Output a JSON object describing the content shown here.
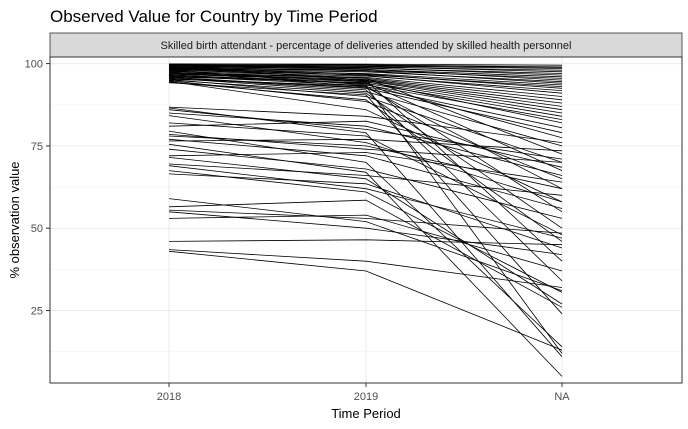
{
  "chart_data": {
    "type": "line",
    "title": "Observed Value for Country by Time Period",
    "facet_label": "Skilled birth attendant - percentage of deliveries attended by skilled health personnel",
    "xlabel": "Time Period",
    "ylabel": "% observation value",
    "categories": [
      "2018",
      "2019",
      "NA"
    ],
    "yticks": [
      25,
      50,
      75,
      100
    ],
    "ylim": [
      3,
      102
    ],
    "grid": true,
    "legend": "none",
    "line_color": "#000000",
    "series": [
      {
        "values": [
          99.9,
          99.8,
          99.5
        ]
      },
      {
        "values": [
          99.7,
          99.6,
          99.0
        ]
      },
      {
        "values": [
          99.5,
          99.4,
          98.8
        ]
      },
      {
        "values": [
          99.3,
          99.2,
          98.5
        ]
      },
      {
        "values": [
          99.1,
          98.9,
          98.0
        ]
      },
      {
        "values": [
          99.8,
          99.1,
          97.5
        ]
      },
      {
        "values": [
          98.9,
          98.6,
          97.0
        ]
      },
      {
        "values": [
          99.6,
          98.7,
          96.5
        ]
      },
      {
        "values": [
          98.7,
          98.2,
          96.0
        ]
      },
      {
        "values": [
          98.5,
          97.9,
          95.5
        ]
      },
      {
        "values": [
          99.4,
          98.3,
          95.0
        ]
      },
      {
        "values": [
          98.3,
          97.5,
          94.5
        ]
      },
      {
        "values": [
          99.0,
          97.8,
          94.0
        ]
      },
      {
        "values": [
          98.1,
          97.0,
          93.5
        ]
      },
      {
        "values": [
          97.9,
          96.6,
          93.0
        ]
      },
      {
        "values": [
          98.8,
          96.8,
          92.5
        ]
      },
      {
        "values": [
          97.6,
          96.2,
          91.8
        ]
      },
      {
        "values": [
          98.6,
          96.4,
          91.0
        ]
      },
      {
        "values": [
          97.3,
          95.8,
          90.0
        ]
      },
      {
        "values": [
          98.4,
          95.5,
          89.0
        ]
      },
      {
        "values": [
          97.0,
          95.2,
          88.0
        ]
      },
      {
        "values": [
          99.2,
          95.0,
          87.0
        ]
      },
      {
        "values": [
          96.8,
          94.8,
          86.0
        ]
      },
      {
        "values": [
          97.8,
          94.4,
          85.0
        ]
      },
      {
        "values": [
          96.5,
          94.0,
          84.0
        ]
      },
      {
        "values": [
          98.0,
          93.5,
          83.0
        ]
      },
      {
        "values": [
          96.2,
          94.6,
          82.0
        ]
      },
      {
        "values": [
          97.5,
          93.0,
          80.5
        ]
      },
      {
        "values": [
          95.9,
          92.5,
          79.0
        ]
      },
      {
        "values": [
          96.6,
          93.8,
          77.5
        ]
      },
      {
        "values": [
          95.6,
          91.5,
          75.0
        ]
      },
      {
        "values": [
          97.2,
          95.6,
          72.5
        ]
      },
      {
        "values": [
          95.2,
          90.0,
          70.0
        ]
      },
      {
        "values": [
          96.0,
          94.2,
          67.5
        ]
      },
      {
        "values": [
          94.8,
          88.5,
          65.0
        ]
      },
      {
        "values": [
          95.4,
          92.8,
          62.0
        ]
      },
      {
        "values": [
          94.6,
          86.0,
          58.0
        ]
      },
      {
        "values": [
          96.3,
          93.3,
          55.0
        ]
      },
      {
        "values": [
          95.0,
          91.0,
          50.0
        ]
      },
      {
        "values": [
          94.4,
          89.0,
          46.0
        ]
      },
      {
        "values": [
          96.9,
          94.9,
          40.0
        ]
      },
      {
        "values": [
          95.8,
          92.0,
          34.0
        ]
      },
      {
        "values": [
          94.2,
          90.5,
          24.0
        ]
      },
      {
        "values": [
          95.3,
          93.2,
          12.0
        ]
      },
      {
        "values": [
          86.8,
          84.0,
          76.0
        ]
      },
      {
        "values": [
          86.0,
          80.0,
          71.0
        ]
      },
      {
        "values": [
          85.0,
          81.0,
          66.0
        ]
      },
      {
        "values": [
          84.2,
          76.0,
          58.0
        ]
      },
      {
        "values": [
          82.0,
          78.0,
          48.0
        ]
      },
      {
        "values": [
          78.5,
          74.0,
          70.0
        ]
      },
      {
        "values": [
          78.0,
          75.0,
          62.0
        ]
      },
      {
        "values": [
          77.0,
          72.0,
          56.0
        ]
      },
      {
        "values": [
          74.0,
          68.0,
          53.0
        ]
      },
      {
        "values": [
          72.0,
          73.0,
          64.0
        ]
      },
      {
        "values": [
          69.5,
          66.0,
          60.0
        ]
      },
      {
        "values": [
          69.0,
          62.0,
          47.0
        ]
      },
      {
        "values": [
          67.5,
          61.0,
          30.5
        ]
      },
      {
        "values": [
          66.5,
          63.5,
          44.0
        ]
      },
      {
        "values": [
          59.0,
          52.0,
          31.0
        ]
      },
      {
        "values": [
          56.5,
          58.5,
          26.0
        ]
      },
      {
        "values": [
          55.5,
          53.0,
          48.5
        ]
      },
      {
        "values": [
          55.0,
          50.0,
          42.0
        ]
      },
      {
        "values": [
          53.0,
          54.0,
          37.0
        ]
      },
      {
        "values": [
          46.0,
          46.5,
          45.0
        ]
      },
      {
        "values": [
          43.5,
          40.0,
          32.0
        ]
      },
      {
        "values": [
          43.0,
          37.0,
          13.0
        ]
      },
      {
        "values": [
          86.5,
          79.0,
          11.0
        ]
      },
      {
        "values": [
          75.5,
          67.0,
          5.0
        ]
      },
      {
        "values": [
          79.5,
          70.0,
          14.0
        ]
      },
      {
        "values": [
          71.5,
          65.0,
          27.0
        ]
      },
      {
        "values": [
          76.5,
          77.0,
          73.5
        ]
      },
      {
        "values": [
          81.0,
          82.5,
          68.5
        ]
      }
    ]
  }
}
